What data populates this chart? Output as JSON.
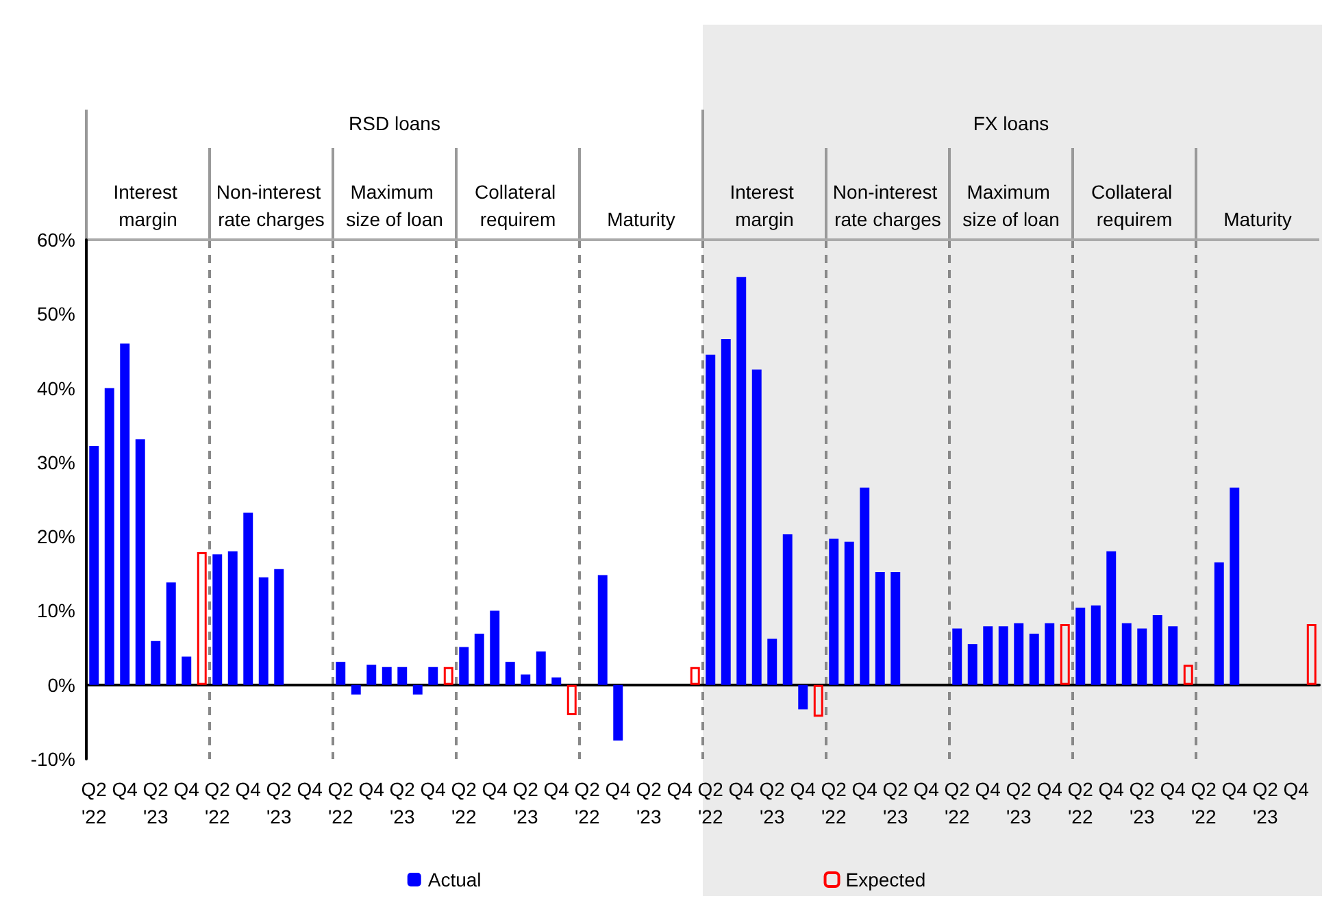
{
  "chart_data": {
    "type": "bar",
    "categories": [
      "Q2\n'22",
      null,
      "Q4",
      null,
      "Q2\n'23",
      null,
      "Q4",
      null,
      "Q2\n'22",
      null,
      "Q4",
      null,
      "Q2\n'23",
      null,
      "Q4",
      null,
      "Q2\n'22",
      null,
      "Q4",
      null,
      "Q2\n'23",
      null,
      "Q4",
      null,
      "Q2\n'22",
      null,
      "Q4",
      null,
      "Q2\n'23",
      null,
      "Q4",
      null,
      "Q2\n'22",
      null,
      "Q4",
      null,
      "Q2\n'23",
      null,
      "Q4",
      null,
      "Q2\n'22",
      null,
      "Q4",
      null,
      "Q2\n'23",
      null,
      "Q4",
      null,
      "Q2\n'22",
      null,
      "Q4",
      null,
      "Q2\n'23",
      null,
      "Q4",
      null,
      "Q2\n'22",
      null,
      "Q4",
      null,
      "Q2\n'23",
      null,
      "Q4",
      null,
      "Q2\n'22",
      null,
      "Q4",
      null,
      "Q2\n'23",
      null,
      "Q4",
      null,
      "Q2\n'22",
      null,
      "Q4",
      null,
      "Q2\n'23",
      null,
      "Q4",
      null
    ],
    "series": [
      {
        "name": "Actual",
        "color": "#0000ff",
        "values": [
          32.2,
          40.0,
          46.0,
          33.1,
          5.9,
          13.8,
          3.8,
          null,
          17.6,
          18.0,
          23.2,
          14.5,
          15.6,
          null,
          null,
          null,
          3.1,
          -1.3,
          2.7,
          2.4,
          2.4,
          -1.3,
          2.4,
          null,
          5.1,
          6.9,
          10.0,
          3.1,
          1.4,
          4.5,
          1.0,
          null,
          null,
          14.8,
          -7.5,
          null,
          null,
          null,
          null,
          null,
          44.5,
          46.6,
          55.0,
          42.5,
          6.2,
          20.3,
          -3.3,
          null,
          19.7,
          19.3,
          26.6,
          15.2,
          15.2,
          null,
          null,
          null,
          7.6,
          5.5,
          7.9,
          7.9,
          8.3,
          6.9,
          8.3,
          null,
          10.4,
          10.7,
          18.0,
          8.3,
          7.6,
          9.4,
          7.9,
          null,
          null,
          16.5,
          26.6,
          null,
          null,
          null,
          null,
          null
        ]
      },
      {
        "name": "Expected",
        "color": "#ff0000",
        "values": [
          null,
          null,
          null,
          null,
          null,
          null,
          null,
          17.9,
          null,
          null,
          null,
          null,
          null,
          null,
          null,
          null,
          null,
          null,
          null,
          null,
          null,
          null,
          null,
          2.4,
          null,
          null,
          null,
          null,
          null,
          null,
          null,
          -4.1,
          null,
          null,
          null,
          null,
          null,
          null,
          null,
          2.4,
          null,
          null,
          null,
          null,
          null,
          null,
          null,
          -4.3,
          null,
          null,
          null,
          null,
          null,
          null,
          null,
          null,
          null,
          null,
          null,
          null,
          null,
          null,
          null,
          8.2,
          null,
          null,
          null,
          null,
          null,
          null,
          null,
          2.7,
          null,
          null,
          null,
          null,
          null,
          null,
          null,
          8.2
        ]
      }
    ],
    "ylim": [
      -10,
      60
    ],
    "yticks": [
      {
        "value": -10,
        "label": "-10%"
      },
      {
        "value": 0,
        "label": "0%"
      },
      {
        "value": 10,
        "label": "10%"
      },
      {
        "value": 20,
        "label": "20%"
      },
      {
        "value": 30,
        "label": "30%"
      },
      {
        "value": 40,
        "label": "40%"
      },
      {
        "value": 50,
        "label": "50%"
      },
      {
        "value": 60,
        "label": "60%"
      }
    ],
    "annotations": [
      "RSD loans",
      "FX loans",
      "Interest margin",
      "Non-interest rate charges",
      "Maximum size of loan",
      "Collateral requirem",
      "Maturity",
      "Interest margin",
      "Non-interest rate charges",
      "Maximum size of loan",
      "Collateral requirem",
      "Maturity"
    ],
    "legend": "bottom",
    "grid": false
  }
}
